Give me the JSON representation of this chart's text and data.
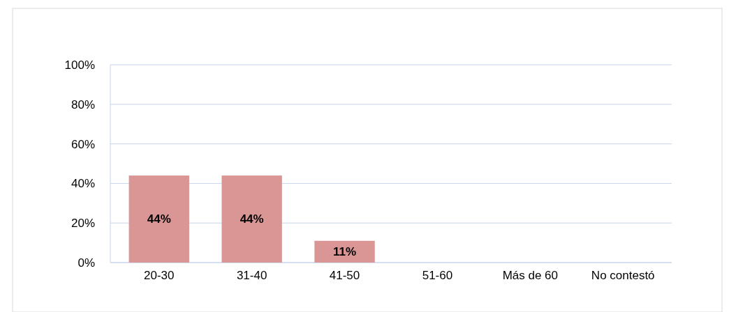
{
  "chart_data": {
    "type": "bar",
    "categories": [
      "20-30",
      "31-40",
      "41-50",
      "51-60",
      "Más de 60",
      "No contestó"
    ],
    "values": [
      44,
      44,
      11,
      0,
      0,
      0
    ],
    "value_labels": [
      "44%",
      "44%",
      "11%",
      null,
      null,
      null
    ],
    "color": "#d99694",
    "ylim": [
      0,
      100
    ],
    "yticks": [
      {
        "value": 0,
        "label": "0%"
      },
      {
        "value": 20,
        "label": "20%"
      },
      {
        "value": 40,
        "label": "40%"
      },
      {
        "value": 60,
        "label": "60%"
      },
      {
        "value": 80,
        "label": "80%"
      },
      {
        "value": 100,
        "label": "100%"
      }
    ],
    "grid": "y"
  }
}
